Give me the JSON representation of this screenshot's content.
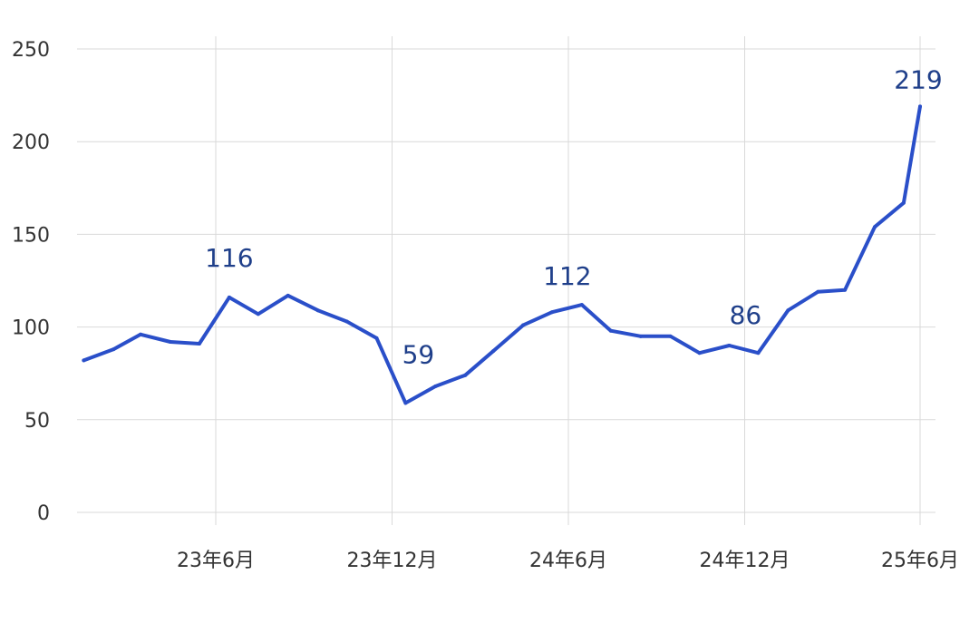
{
  "chart_data": {
    "type": "line",
    "title": "",
    "xlabel": "",
    "ylabel": "",
    "ylim": [
      0,
      250
    ],
    "y_ticks": [
      0,
      50,
      100,
      150,
      200,
      250
    ],
    "x_ticks": [
      {
        "label": "23年6月",
        "date": "2023-06"
      },
      {
        "label": "23年12月",
        "date": "2023-12"
      },
      {
        "label": "24年6月",
        "date": "2024-06"
      },
      {
        "label": "24年12月",
        "date": "2024-12"
      },
      {
        "label": "25年6月",
        "date": "2025-06"
      }
    ],
    "grid": true,
    "line_color": "#2a4fc9",
    "label_color": "#1f3f8a",
    "series": [
      {
        "points": [
          {
            "date": "2023-01-15",
            "value": 82
          },
          {
            "date": "2023-02-15",
            "value": 88
          },
          {
            "date": "2023-03-15",
            "value": 96
          },
          {
            "date": "2023-04-15",
            "value": 92
          },
          {
            "date": "2023-05-15",
            "value": 91
          },
          {
            "date": "2023-06-15",
            "value": 116
          },
          {
            "date": "2023-07-15",
            "value": 107
          },
          {
            "date": "2023-08-15",
            "value": 117
          },
          {
            "date": "2023-09-15",
            "value": 109
          },
          {
            "date": "2023-10-15",
            "value": 103
          },
          {
            "date": "2023-11-15",
            "value": 94
          },
          {
            "date": "2023-12-15",
            "value": 59
          },
          {
            "date": "2024-01-15",
            "value": 68
          },
          {
            "date": "2024-02-15",
            "value": 74
          },
          {
            "date": "2024-03-15",
            "value": 87
          },
          {
            "date": "2024-04-15",
            "value": 101
          },
          {
            "date": "2024-05-15",
            "value": 108
          },
          {
            "date": "2024-06-15",
            "value": 112
          },
          {
            "date": "2024-07-15",
            "value": 98
          },
          {
            "date": "2024-08-15",
            "value": 95
          },
          {
            "date": "2024-09-15",
            "value": 95
          },
          {
            "date": "2024-10-15",
            "value": 86
          },
          {
            "date": "2024-11-15",
            "value": 90
          },
          {
            "date": "2024-12-15",
            "value": 86
          },
          {
            "date": "2025-01-15",
            "value": 109
          },
          {
            "date": "2025-02-15",
            "value": 119
          },
          {
            "date": "2025-03-15",
            "value": 120
          },
          {
            "date": "2025-04-15",
            "value": 154
          },
          {
            "date": "2025-05-15",
            "value": 167
          },
          {
            "date": "2025-06-01",
            "value": 219
          }
        ]
      }
    ],
    "annotations": [
      {
        "text": "116",
        "date": "2023-06-15",
        "value": 116
      },
      {
        "text": "59",
        "date": "2023-12-15",
        "value": 59
      },
      {
        "text": "112",
        "date": "2024-06-15",
        "value": 112
      },
      {
        "text": "86",
        "date": "2024-12-15",
        "value": 86
      },
      {
        "text": "219",
        "date": "2025-06-01",
        "value": 219
      }
    ]
  }
}
